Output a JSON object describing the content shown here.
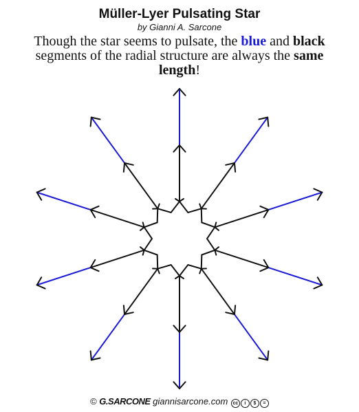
{
  "title": "Müller-Lyer Pulsating Star",
  "byline": "by Gianni A. Sarcone",
  "description": {
    "part1": "Though the star seems to pulsate, the ",
    "blue_word": "blue",
    "part2": " and ",
    "black_word": "black",
    "part3": " segments of the radial structure are always the ",
    "same_length": "same length",
    "part4": "!"
  },
  "diagram": {
    "rays": 10,
    "segment_color_blue": "#1a1ad6",
    "segment_color_black": "#111111"
  },
  "footer": {
    "copyright": "©",
    "signature": "G.SARCONE",
    "website": "giannisarcone.com",
    "cc_badges": [
      "cc",
      "i",
      "$",
      "="
    ]
  }
}
